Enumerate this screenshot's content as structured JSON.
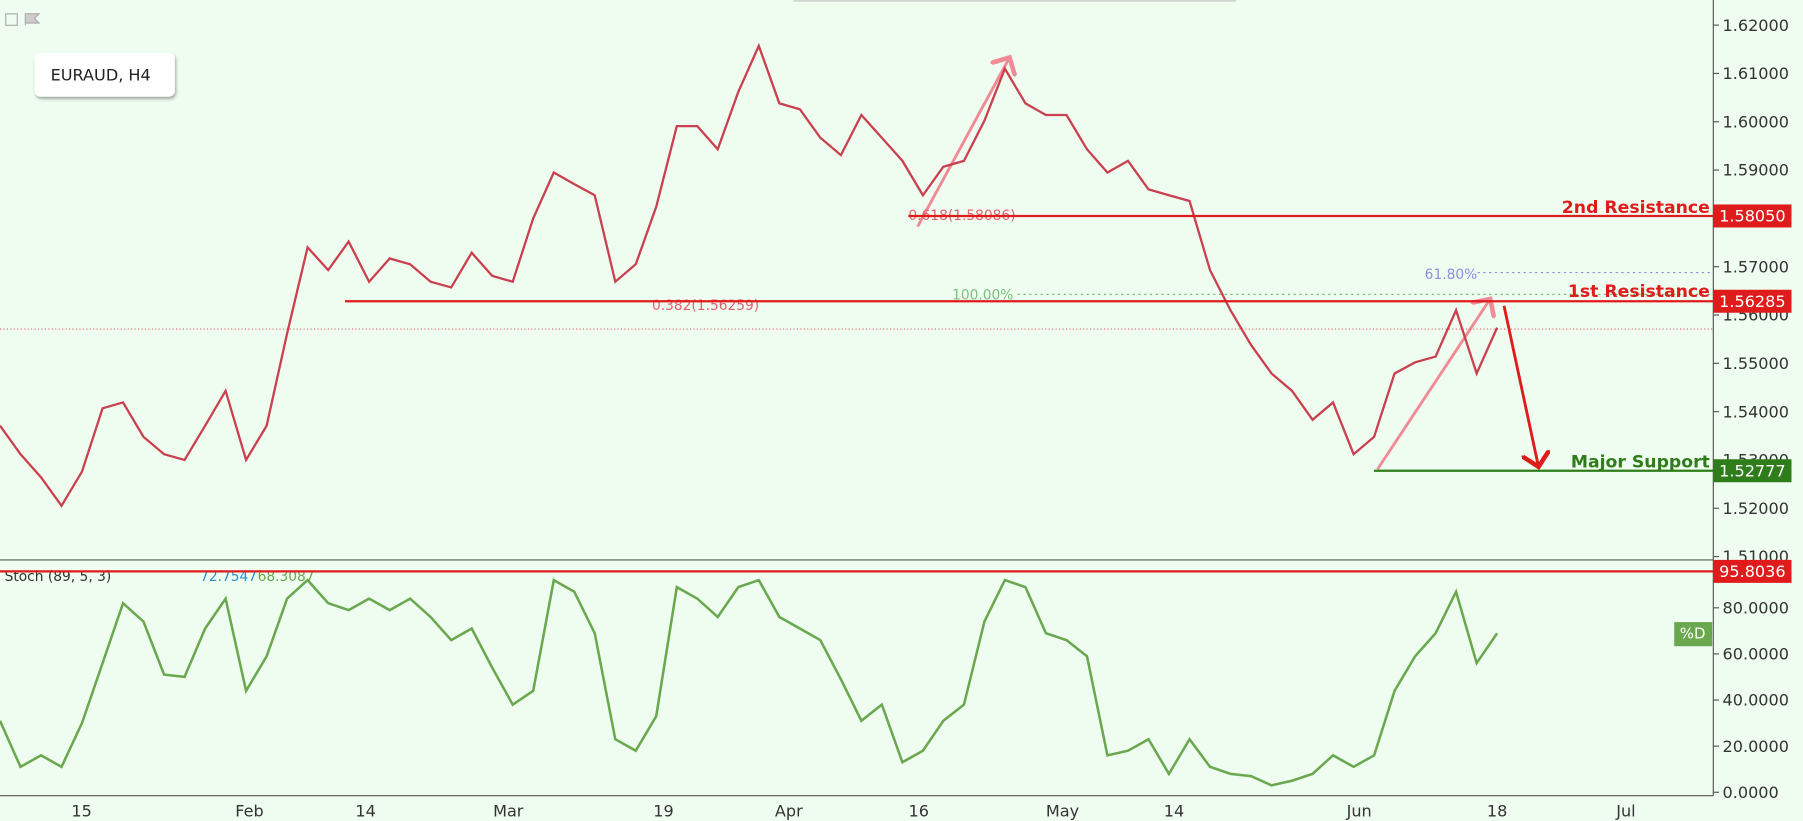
{
  "chart_data": [
    {
      "type": "price",
      "title": "EURAUD, H4",
      "values": [
        1.5371,
        1.5312,
        1.5264,
        1.5205,
        1.5276,
        1.5407,
        1.5419,
        1.5348,
        1.5312,
        1.53,
        1.5371,
        1.5443,
        1.53,
        1.5371,
        1.5562,
        1.574,
        1.5693,
        1.5752,
        1.5669,
        1.5717,
        1.5705,
        1.5669,
        1.5657,
        1.5729,
        1.5681,
        1.5669,
        1.58,
        1.5895,
        1.5871,
        1.5848,
        1.5669,
        1.5705,
        1.5824,
        1.5991,
        1.5991,
        1.5943,
        1.6062,
        1.6157,
        1.6038,
        1.6026,
        1.5967,
        1.5931,
        1.6014,
        1.5967,
        1.5919,
        1.5848,
        1.5907,
        1.5919,
        1.6002,
        1.611,
        1.6038,
        1.6014,
        1.6014,
        1.5943,
        1.5895,
        1.5919,
        1.586,
        1.5848,
        1.5836,
        1.5693,
        1.561,
        1.5538,
        1.5479,
        1.5443,
        1.5383,
        1.5419,
        1.5312,
        1.5348,
        1.5479,
        1.5502,
        1.5514,
        1.561,
        1.5479,
        1.5574
      ],
      "color": "#c9404f",
      "ylim": [
        1.5093,
        1.6252
      ],
      "yticks": [
        {
          "value": 1.51,
          "label": "1.51000"
        },
        {
          "value": 1.52,
          "label": "1.52000"
        },
        {
          "value": 1.53,
          "label": "1.53000"
        },
        {
          "value": 1.54,
          "label": "1.54000"
        },
        {
          "value": 1.55,
          "label": "1.55000"
        },
        {
          "value": 1.56,
          "label": "1.56000"
        },
        {
          "value": 1.57,
          "label": "1.57000"
        },
        {
          "value": 1.58,
          "label": "1.58000"
        },
        {
          "value": 1.59,
          "label": "1.59000"
        },
        {
          "value": 1.6,
          "label": "1.60000"
        },
        {
          "value": 1.61,
          "label": "1.61000"
        },
        {
          "value": 1.62,
          "label": "1.62000"
        }
      ],
      "levels": [
        {
          "name": "2nd Resistance",
          "value": {
            "value": 1.5805,
            "label": "1.58050"
          },
          "color": "#e01b1b"
        },
        {
          "name": "1st Resistance",
          "value": 1.56285,
          "color": "#e01b1b"
        },
        {
          "name": "Major Support",
          "value": 1.52777,
          "color": "#2e7d1a"
        }
      ],
      "price_line": 1.5571,
      "fib_labels": [
        "0.618(1.58086)",
        "0.382(1.56259)",
        "100.00%",
        "61.80%"
      ],
      "xtick_labels": [
        "15",
        "Feb",
        "14",
        "Mar",
        "19",
        "Apr",
        "16",
        "May",
        "14",
        "Jun",
        "18",
        "Jul"
      ]
    },
    {
      "type": "stochastic",
      "title": "Stoch (89, 5, 3)",
      "readings": [
        72.7547,
        68.3087
      ],
      "series_name": "%D",
      "values": [
        31,
        11,
        16,
        11,
        30,
        56,
        82,
        74,
        51,
        50,
        71,
        84,
        44,
        59,
        84,
        92,
        82,
        79,
        84,
        79,
        84,
        76,
        66,
        71,
        54,
        38,
        44,
        92,
        87,
        69,
        23,
        18,
        33,
        89,
        84,
        76,
        89,
        92,
        76,
        71,
        66,
        49,
        31,
        38,
        13,
        18,
        31,
        38,
        74,
        92,
        89,
        69,
        66,
        59,
        16,
        18,
        23,
        8,
        23,
        11,
        8,
        7,
        3,
        5,
        8,
        16,
        11,
        16,
        44,
        59,
        69,
        87,
        56,
        69
      ],
      "color": "#6aa84f",
      "ylim": [
        -1.5,
        100
      ],
      "yticks": [
        {
          "value": 0,
          "label": "0.0000"
        },
        {
          "value": 20,
          "label": "20.0000"
        },
        {
          "value": 40,
          "label": "40.0000"
        },
        {
          "value": 60,
          "label": "60.0000"
        },
        {
          "value": 80,
          "label": "80.0000"
        }
      ],
      "level": 95.8036,
      "level_color": "#e01b1b"
    }
  ]
}
